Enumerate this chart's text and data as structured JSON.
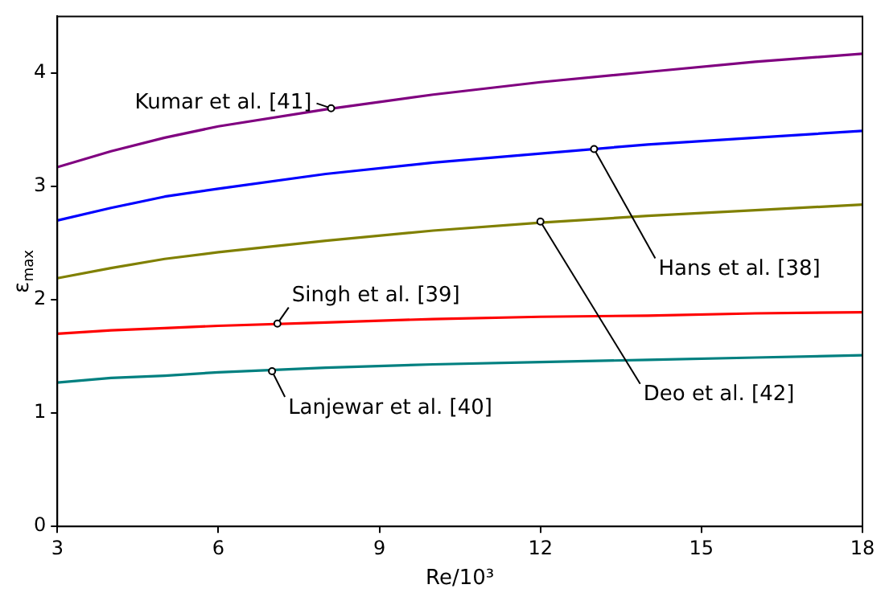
{
  "chart_data": {
    "type": "line",
    "xlabel": "Re/10³",
    "ylabel": "ε$_{max}$",
    "x": [
      3,
      4,
      5,
      6,
      8,
      10,
      12,
      14,
      16,
      18
    ],
    "series": [
      {
        "color": "#800080",
        "values": [
          3.17,
          3.31,
          3.43,
          3.53,
          3.68,
          3.81,
          3.92,
          4.01,
          4.1,
          4.17
        ]
      },
      {
        "color": "#0000ff",
        "values": [
          2.7,
          2.81,
          2.91,
          2.98,
          3.11,
          3.21,
          3.29,
          3.37,
          3.43,
          3.49
        ]
      },
      {
        "color": "#808000",
        "values": [
          2.19,
          2.28,
          2.36,
          2.42,
          2.52,
          2.61,
          2.68,
          2.74,
          2.79,
          2.84
        ]
      },
      {
        "color": "#ff0000",
        "values": [
          1.7,
          1.73,
          1.75,
          1.77,
          1.8,
          1.83,
          1.85,
          1.86,
          1.88,
          1.89
        ]
      },
      {
        "color": "#008080",
        "values": [
          1.27,
          1.31,
          1.33,
          1.36,
          1.4,
          1.43,
          1.45,
          1.47,
          1.49,
          1.51
        ]
      }
    ],
    "annotations": [
      {
        "text": "Kumar et al. [41]",
        "x": 8.1,
        "y": 3.69
      },
      {
        "text": "Hans et al. [38]",
        "x": 13,
        "y": 3.33
      },
      {
        "text": "Deo et al. [42]",
        "x": 12,
        "y": 2.69
      },
      {
        "text": "Singh et al. [39]",
        "x": 7.1,
        "y": 1.79
      },
      {
        "text": "Lanjewar et al. [40]",
        "x": 7,
        "y": 1.37
      }
    ],
    "xlim": [
      3,
      18
    ],
    "xticks": [
      3,
      6,
      9,
      12,
      15,
      18
    ],
    "ylim": [
      0,
      4.5
    ],
    "yticks": [
      0,
      1,
      2,
      3,
      4
    ],
    "grid": false,
    "legend": false,
    "marker": "none",
    "line_style": "solid"
  }
}
